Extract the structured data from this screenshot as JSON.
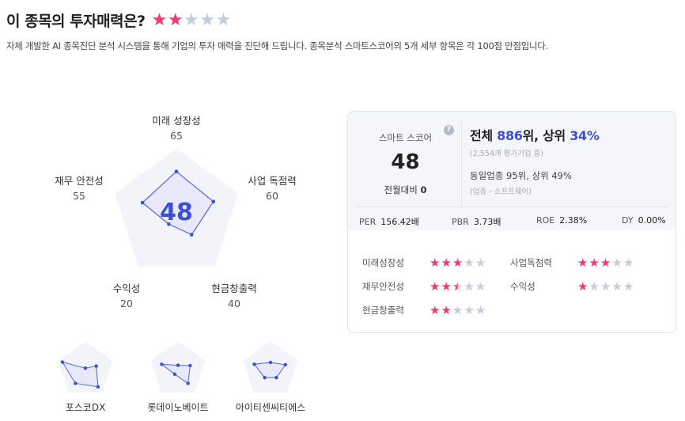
{
  "header": {
    "title": "이 종목의 투자매력은?",
    "rating": 2,
    "description": "자체 개발한 AI 종목진단 분석 시스템을 통해 기업의 투자 매력을 진단해 드립니다. 종목분석 스마트스코어의 5개 세부 항목은 각 100점 만점입니다."
  },
  "radar": {
    "score": "48",
    "axes": [
      {
        "label": "미래 성장성",
        "value": 65
      },
      {
        "label": "사업 독점력",
        "value": 60
      },
      {
        "label": "현금창출력",
        "value": 40
      },
      {
        "label": "수익성",
        "value": 20
      },
      {
        "label": "재무 안전성",
        "value": 55
      }
    ],
    "values_text": [
      "65",
      "60",
      "40",
      "20",
      "55"
    ],
    "colors": {
      "fill": "#e3e6f7",
      "stroke": "#3b4fd8",
      "bg": "#f3f4f9"
    }
  },
  "card": {
    "smart_label": "스마트 스코어",
    "smart_score": "48",
    "mom_label": "전월대비",
    "mom_value": "0",
    "help": "?",
    "rank_prefix": "전체 ",
    "rank": "886",
    "rank_mid": "위, 상위 ",
    "rank_pct": "34%",
    "rank_sub": "(2,554개 평가기업 중)",
    "industry": "동일업종 95위, 상위 49%",
    "industry_sub": "(업종 - 소프트웨어)",
    "fin": [
      {
        "label": "PER",
        "value": "156.42배"
      },
      {
        "label": "PBR",
        "value": "3.73배"
      },
      {
        "label": "ROE",
        "value": "2.38%"
      },
      {
        "label": "DY",
        "value": "0.00%"
      }
    ],
    "ratings": [
      {
        "label": "미래성장성",
        "stars": 3
      },
      {
        "label": "사업독점력",
        "stars": 3
      },
      {
        "label": "재무안전성",
        "stars": 2.5
      },
      {
        "label": "수익성",
        "stars": 1
      },
      {
        "label": "현금창출력",
        "stars": 2
      }
    ]
  },
  "peers": [
    {
      "name": "포스코DX",
      "values": [
        5,
        40,
        75,
        60,
        85
      ]
    },
    {
      "name": "롯데이노베이트",
      "values": [
        15,
        45,
        60,
        20,
        60
      ]
    },
    {
      "name": "아이티센씨티에스",
      "values": [
        25,
        55,
        35,
        35,
        60
      ]
    }
  ]
}
